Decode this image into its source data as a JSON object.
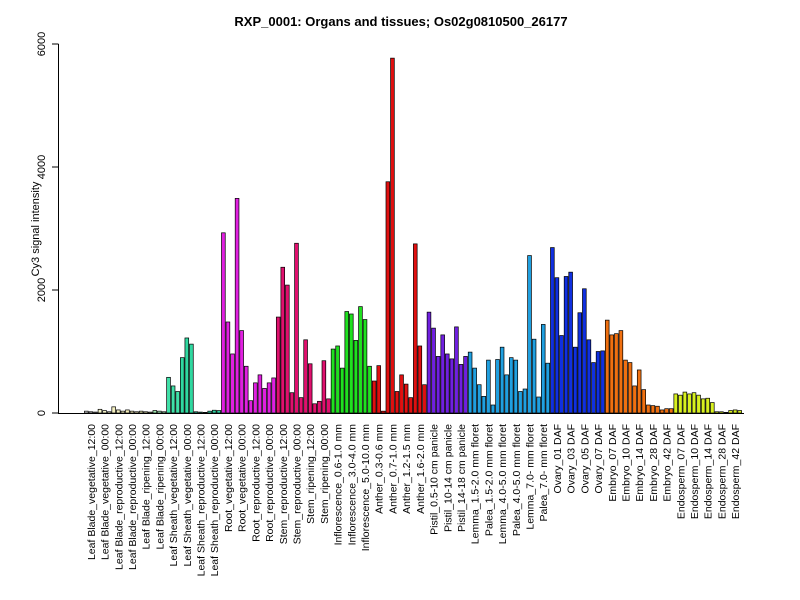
{
  "chart_data": {
    "type": "bar",
    "title": "RXP_0001: Organs and tissues; Os02g0810500_26177",
    "ylabel": "Cy3 signal intensity",
    "xlabel": "",
    "ylim": [
      0,
      6000
    ],
    "yticks": [
      0,
      2000,
      4000,
      6000
    ],
    "ytick_labels": [
      "0",
      "2000",
      "4000",
      "6000"
    ],
    "grid": false,
    "groups": [
      {
        "label": "Leaf Blade_vegetative_12:00",
        "color": "#d8d8d8",
        "values": [
          30,
          20,
          15
        ]
      },
      {
        "label": "Leaf Blade_vegetative_00:00",
        "color": "#f4f4c8",
        "values": [
          60,
          40,
          20
        ]
      },
      {
        "label": "Leaf Blade_reproductive_12:00",
        "color": "#f4f0c0",
        "values": [
          100,
          50,
          30
        ]
      },
      {
        "label": "Leaf Blade_reproductive_00:00",
        "color": "#f4ecb8",
        "values": [
          50,
          30,
          20
        ]
      },
      {
        "label": "Leaf Blade_ripening_12:00",
        "color": "#e8e8b0",
        "values": [
          30,
          20,
          15
        ]
      },
      {
        "label": "Leaf Blade_ripening_00:00",
        "color": "#a0e8b0",
        "values": [
          40,
          30,
          20
        ]
      },
      {
        "label": "Leaf Sheath_vegetative_12:00",
        "color": "#40e0a8",
        "values": [
          580,
          440,
          350
        ]
      },
      {
        "label": "Leaf Sheath_vegetative_00:00",
        "color": "#30d8a0",
        "values": [
          900,
          1220,
          1120
        ]
      },
      {
        "label": "Leaf Sheath_reproductive_12:00",
        "color": "#30d0a0",
        "values": [
          20,
          15,
          10
        ]
      },
      {
        "label": "Leaf Sheath_reproductive_00:00",
        "color": "#30d0a0",
        "values": [
          30,
          45,
          40
        ]
      },
      {
        "label": "Root_vegetative_12:00",
        "color": "#e020e0",
        "values": [
          2930,
          1480,
          960
        ]
      },
      {
        "label": "Root_vegetative_00:00",
        "color": "#e020e0",
        "values": [
          3490,
          1340,
          760
        ]
      },
      {
        "label": "Root_reproductive_12:00",
        "color": "#e020e0",
        "values": [
          200,
          490,
          620
        ]
      },
      {
        "label": "Root_reproductive_00:00",
        "color": "#e020e0",
        "values": [
          400,
          490,
          570
        ]
      },
      {
        "label": "Stem_reproductive_12:00",
        "color": "#e0106e",
        "values": [
          1560,
          2370,
          2080
        ]
      },
      {
        "label": "Stem_reproductive_00:00",
        "color": "#e0106e",
        "values": [
          330,
          2760,
          250
        ]
      },
      {
        "label": "Stem_ripening_12:00",
        "color": "#e0106e",
        "values": [
          1190,
          800,
          150
        ]
      },
      {
        "label": "Stem_ripening_00:00",
        "color": "#e0106e",
        "values": [
          190,
          850,
          230
        ]
      },
      {
        "label": "Inflorescence_0.6-1.0 mm",
        "color": "#20e020",
        "values": [
          1040,
          1090,
          730
        ]
      },
      {
        "label": "Inflorescence_3.0-4.0 mm",
        "color": "#20e020",
        "values": [
          1650,
          1610,
          1180
        ]
      },
      {
        "label": "Inflorescence_5.0-10.0 mm",
        "color": "#20e020",
        "values": [
          1730,
          1520,
          760
        ]
      },
      {
        "label": "Anther_0.3-0.6 mm",
        "color": "#e01010",
        "values": [
          520,
          770,
          30
        ]
      },
      {
        "label": "Anther_0.7-1.0 mm",
        "color": "#e01010",
        "values": [
          3760,
          5770,
          350
        ]
      },
      {
        "label": "Anther_1.2-1.5 mm",
        "color": "#e01010",
        "values": [
          620,
          470,
          250
        ]
      },
      {
        "label": "Anther_1.6-2.0 mm",
        "color": "#e01010",
        "values": [
          2750,
          1090,
          460
        ]
      },
      {
        "label": "Pistil_0.5-10 cm panicle",
        "color": "#7020e0",
        "values": [
          1640,
          1380,
          920
        ]
      },
      {
        "label": "Pistil_10-14 cm panicle",
        "color": "#7020e0",
        "values": [
          1270,
          960,
          880
        ]
      },
      {
        "label": "Pistil_14-18 cm panicle",
        "color": "#7020e0",
        "values": [
          1400,
          790,
          920
        ]
      },
      {
        "label": "Lemma_1.5-2.0 mm floret",
        "color": "#20a0e0",
        "values": [
          990,
          730,
          460
        ]
      },
      {
        "label": "Palea_1.5-2.0 mm floret",
        "color": "#20a0e0",
        "values": [
          270,
          860,
          130
        ]
      },
      {
        "label": "Lemma_4.0-5.0 mm floret",
        "color": "#20a0e0",
        "values": [
          870,
          1070,
          620
        ]
      },
      {
        "label": "Palea_4.0-5.0 mm floret",
        "color": "#20a0e0",
        "values": [
          900,
          860,
          350
        ]
      },
      {
        "label": "Lemma_7.0- mm floret",
        "color": "#20a0e0",
        "values": [
          390,
          2560,
          1200
        ]
      },
      {
        "label": "Palea_7.0- mm floret",
        "color": "#20a0e0",
        "values": [
          260,
          1440,
          810
        ]
      },
      {
        "label": "Ovary_01 DAF",
        "color": "#1030e0",
        "values": [
          2690,
          2200,
          1260
        ]
      },
      {
        "label": "Ovary_03 DAF",
        "color": "#1030e0",
        "values": [
          2220,
          2290,
          1070
        ]
      },
      {
        "label": "Ovary_05 DAF",
        "color": "#1030e0",
        "values": [
          1630,
          2020,
          1190
        ]
      },
      {
        "label": "Ovary_07 DAF",
        "color": "#1030e0",
        "values": [
          820,
          1000,
          1010
        ]
      },
      {
        "label": "Embryo_07 DAF",
        "color": "#f07010",
        "values": [
          1510,
          1270,
          1290
        ]
      },
      {
        "label": "Embryo_10 DAF",
        "color": "#f07010",
        "values": [
          1340,
          860,
          820
        ]
      },
      {
        "label": "Embryo_14 DAF",
        "color": "#f07010",
        "values": [
          440,
          700,
          380
        ]
      },
      {
        "label": "Embryo_28 DAF",
        "color": "#f07010",
        "values": [
          130,
          120,
          110
        ]
      },
      {
        "label": "Embryo_42 DAF",
        "color": "#f07010",
        "values": [
          50,
          70,
          70
        ]
      },
      {
        "label": "Endosperm_07 DAF",
        "color": "#d8f020",
        "values": [
          310,
          290,
          340
        ]
      },
      {
        "label": "Endosperm_10 DAF",
        "color": "#d8f020",
        "values": [
          310,
          330,
          290
        ]
      },
      {
        "label": "Endosperm_14 DAF",
        "color": "#d8f020",
        "values": [
          230,
          240,
          170
        ]
      },
      {
        "label": "Endosperm_28 DAF",
        "color": "#d8f020",
        "values": [
          20,
          20,
          10
        ]
      },
      {
        "label": "Endosperm_42 DAF",
        "color": "#d8f020",
        "values": [
          40,
          50,
          40
        ]
      }
    ]
  }
}
